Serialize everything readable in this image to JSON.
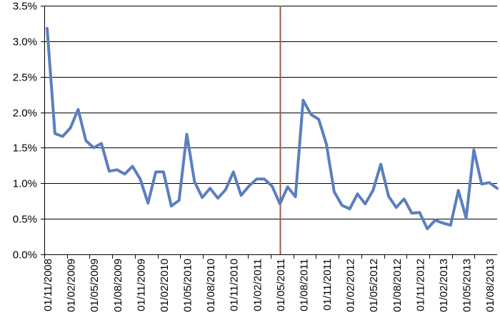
{
  "colors": {
    "series_line": "#5b7fbf",
    "gridline": "#000000",
    "marker_line": "#9e5a4a",
    "axis": "#000000",
    "background": "#ffffff"
  },
  "chart_data": {
    "type": "line",
    "title": "",
    "xlabel": "",
    "ylabel": "",
    "ylim": [
      0.0,
      3.5
    ],
    "yticks": [
      "0.0%",
      "0.5%",
      "1.0%",
      "1.5%",
      "2.0%",
      "2.5%",
      "3.0%",
      "3.5%"
    ],
    "ytick_values": [
      0.0,
      0.5,
      1.0,
      1.5,
      2.0,
      2.5,
      3.0,
      3.5
    ],
    "grid": "horizontal",
    "legend": "none",
    "xticks": [
      "01/11/2008",
      "01/02/2009",
      "01/05/2009",
      "01/08/2009",
      "01/11/2009",
      "01/02/2010",
      "01/05/2010",
      "01/08/2010",
      "01/11/2010",
      "01/02/2011",
      "01/05/2011",
      "01/08/2011",
      "01/11/2011",
      "01/02/2012",
      "01/05/2012",
      "01/08/2012",
      "01/11/2012",
      "01/02/2013",
      "01/05/2013",
      "01/08/2013"
    ],
    "vertical_marker_x": "01/05/2011",
    "x": [
      "11/2008",
      "12/2008",
      "01/2009",
      "02/2009",
      "03/2009",
      "04/2009",
      "05/2009",
      "06/2009",
      "07/2009",
      "08/2009",
      "09/2009",
      "10/2009",
      "11/2009",
      "12/2009",
      "01/2010",
      "02/2010",
      "03/2010",
      "04/2010",
      "05/2010",
      "06/2010",
      "07/2010",
      "08/2010",
      "09/2010",
      "10/2010",
      "11/2010",
      "12/2010",
      "01/2011",
      "02/2011",
      "03/2011",
      "04/2011",
      "05/2011",
      "06/2011",
      "07/2011",
      "08/2011",
      "09/2011",
      "10/2011",
      "11/2011",
      "12/2011",
      "01/2012",
      "02/2012",
      "03/2012",
      "04/2012",
      "05/2012",
      "06/2012",
      "07/2012",
      "08/2012",
      "09/2012",
      "10/2012",
      "11/2012",
      "12/2012",
      "01/2013",
      "02/2013",
      "03/2013",
      "04/2013",
      "05/2013",
      "06/2013",
      "07/2013",
      "08/2013",
      "09/2013"
    ],
    "series": [
      {
        "values": [
          3.18,
          1.7,
          1.66,
          1.78,
          2.04,
          1.6,
          1.5,
          1.56,
          1.17,
          1.19,
          1.13,
          1.24,
          1.06,
          0.72,
          1.16,
          1.16,
          0.68,
          0.76,
          1.69,
          1.02,
          0.8,
          0.93,
          0.79,
          0.91,
          1.16,
          0.83,
          0.96,
          1.06,
          1.06,
          0.96,
          0.71,
          0.95,
          0.81,
          2.17,
          1.97,
          1.9,
          1.55,
          0.88,
          0.69,
          0.64,
          0.85,
          0.71,
          0.9,
          1.27,
          0.82,
          0.66,
          0.78,
          0.58,
          0.59,
          0.36,
          0.48,
          0.44,
          0.41,
          0.9,
          0.51,
          1.47,
          0.99,
          1.01,
          0.93
        ]
      }
    ]
  }
}
